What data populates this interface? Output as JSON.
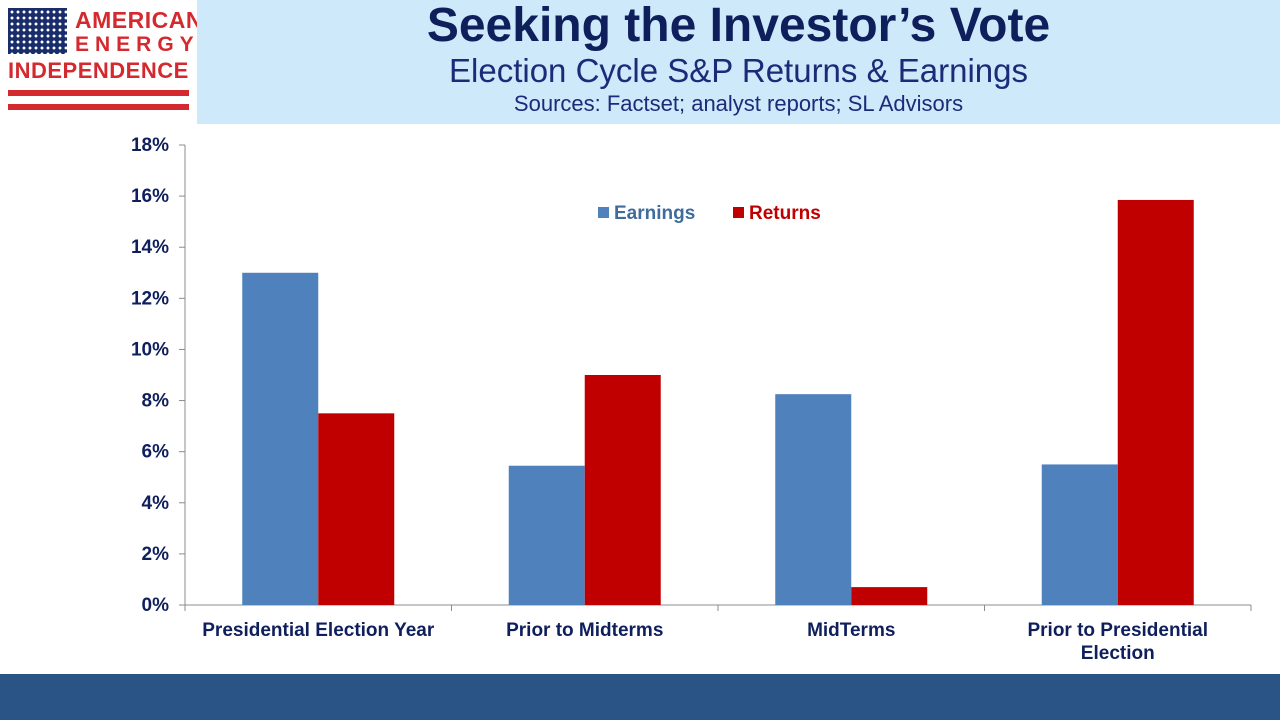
{
  "logo": {
    "line1": "AMERICAN",
    "line2": "ENERGY",
    "line3": "INDEPENDENCE",
    "icon": "us-flag-icon",
    "brand_color": "#d42a2f"
  },
  "header": {
    "title": "Seeking the Investor’s Vote",
    "subtitle": "Election Cycle S&P Returns & Earnings",
    "sources": "Sources: Factset; analyst reports; SL Advisors"
  },
  "chart_data": {
    "type": "bar",
    "categories": [
      [
        "Presidential Election Year"
      ],
      [
        "Prior to Midterms"
      ],
      [
        "MidTerms"
      ],
      [
        "Prior to Presidential",
        "Election"
      ]
    ],
    "series": [
      {
        "name": "Earnings",
        "color": "#4f81bd",
        "values": [
          13.0,
          5.45,
          8.25,
          5.5
        ]
      },
      {
        "name": "Returns",
        "color": "#c00000",
        "values": [
          7.5,
          9.0,
          0.7,
          15.85
        ]
      }
    ],
    "y_ticks": [
      "0%",
      "2%",
      "4%",
      "6%",
      "8%",
      "10%",
      "12%",
      "14%",
      "16%",
      "18%"
    ],
    "ylim": [
      0,
      18
    ],
    "grid": false,
    "legend_position": "top-center"
  }
}
